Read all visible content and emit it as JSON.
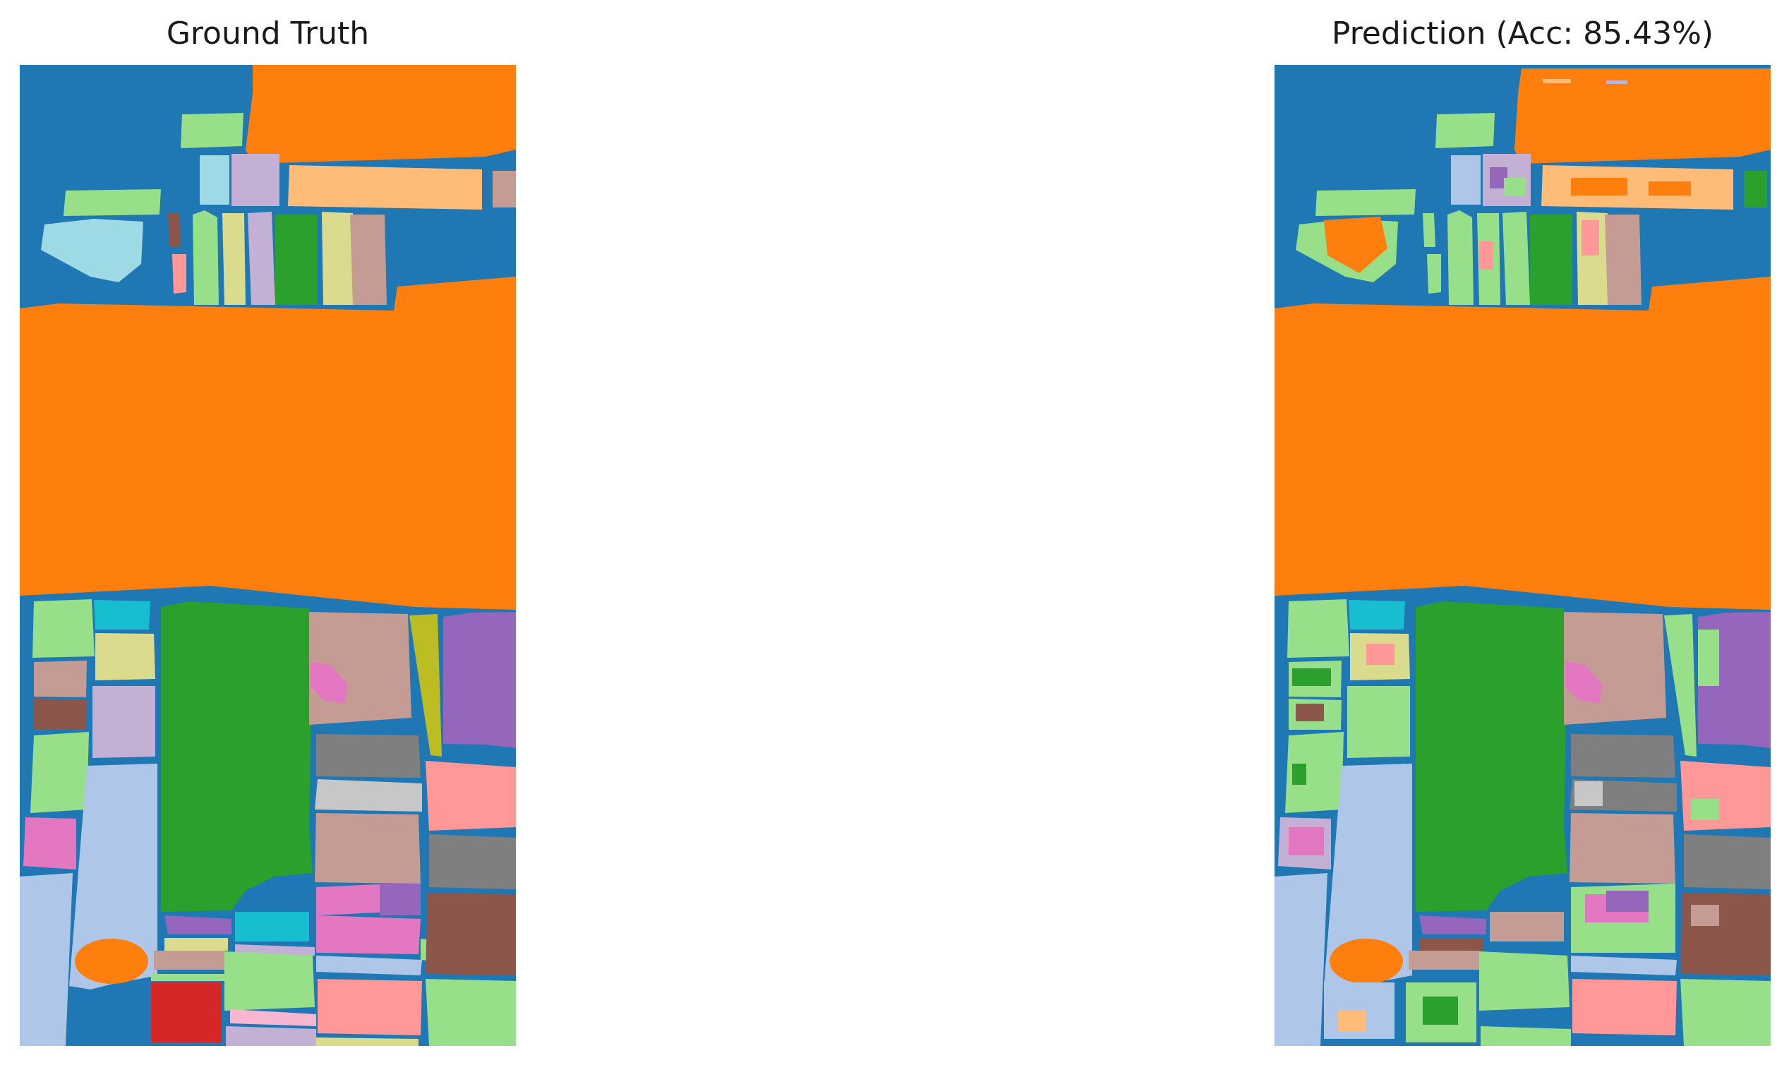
{
  "panels": {
    "ground_truth": {
      "title": "Ground Truth"
    },
    "prediction": {
      "title": "Prediction (Acc: 85.43%)"
    }
  },
  "colors": {
    "background": "#1f77b4",
    "orange": "#ff7f0e",
    "light_orange": "#ffbb78",
    "green": "#2ca02c",
    "light_green": "#98df8a",
    "red": "#d62728",
    "pink_light": "#ff9896",
    "purple": "#9467bd",
    "lavender": "#c5b0d5",
    "brown": "#8c564b",
    "tan": "#c49c94",
    "magenta": "#e377c2",
    "light_pink": "#f7b6d2",
    "gray": "#7f7f7f",
    "light_gray": "#c7c7c7",
    "olive": "#bcbd22",
    "khaki": "#dbdb8d",
    "cyan": "#17becf",
    "light_cyan": "#9edae5",
    "light_blue": "#aec7e8"
  }
}
